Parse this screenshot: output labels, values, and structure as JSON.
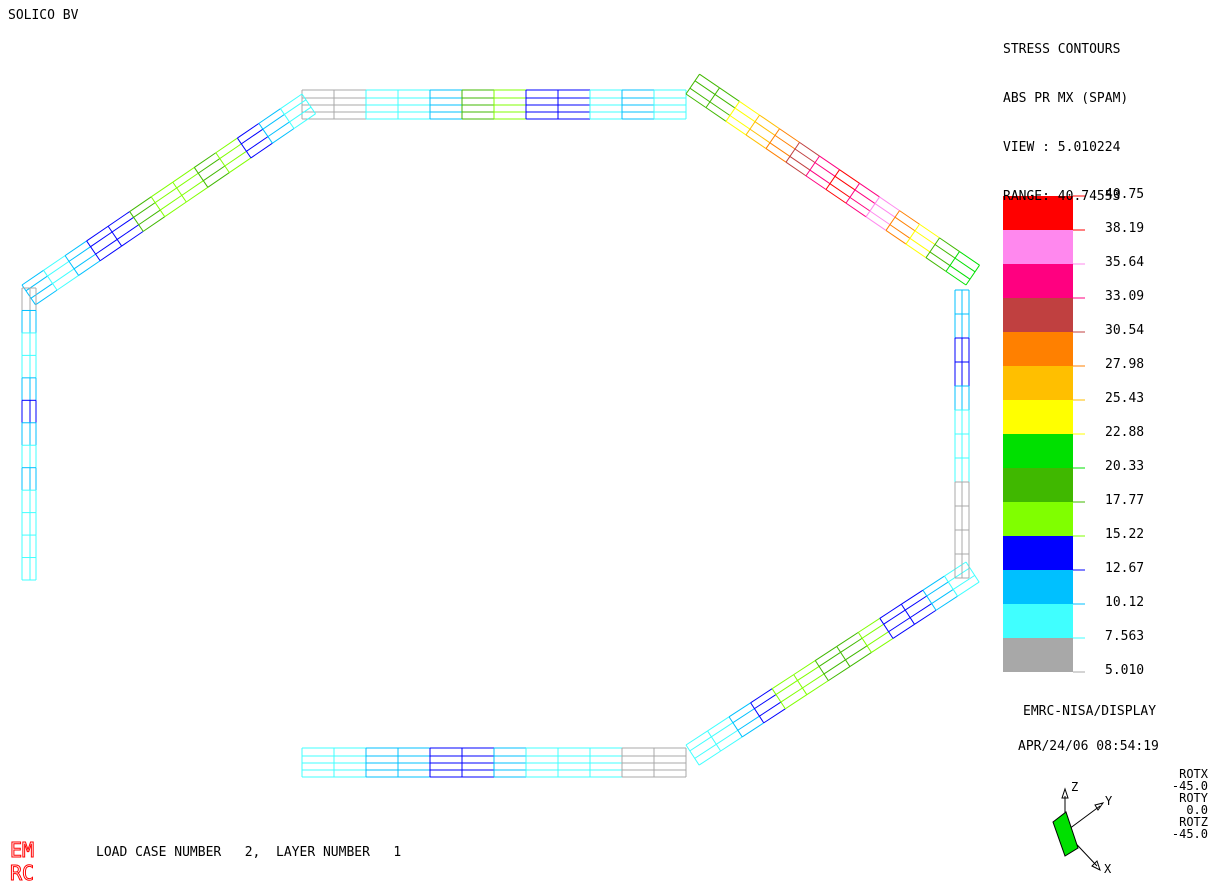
{
  "company": "SOLICO BV",
  "header": {
    "lines": [
      "STRESS CONTOURS",
      "ABS PR MX (SPAM)",
      "VIEW : 5.010224",
      "RANGE: 40.74553"
    ]
  },
  "legend": {
    "labels": [
      "40.75",
      "38.19",
      "35.64",
      "33.09",
      "30.54",
      "27.98",
      "25.43",
      "22.88",
      "20.33",
      "17.77",
      "15.22",
      "12.67",
      "10.12",
      "7.563",
      "5.010"
    ],
    "colors": [
      "#ff0000",
      "#ff88ee",
      "#ff0080",
      "#c04040",
      "#ff8000",
      "#ffbf00",
      "#ffff00",
      "#00e000",
      "#40b800",
      "#80ff00",
      "#0000ff",
      "#00c0ff",
      "#40ffff",
      "#a8a8a8"
    ]
  },
  "brand": "EMRC-NISA/DISPLAY",
  "timestamp": "APR/24/06 08:54:19",
  "rotation": [
    "ROTX",
    "-45.0",
    "ROTY",
    "0.0",
    "ROTZ",
    "-45.0"
  ],
  "axes": {
    "z": "Z",
    "y": "Y",
    "x": "X"
  },
  "logo": {
    "line1": "EM",
    "line2": "RC"
  },
  "load_case": "LOAD CASE NUMBER   2,  LAYER NUMBER   1",
  "colors": {
    "gray": "#a8a8a8",
    "cyan": "#40ffff",
    "lightblue": "#00c0ff",
    "blue": "#0000ff",
    "lime": "#80ff00",
    "green": "#40b800",
    "brightgreen": "#00e000",
    "yellow": "#ffff00",
    "amber": "#ffbf00",
    "orange": "#ff8000",
    "brown": "#c04040",
    "magenta": "#ff0080",
    "pink": "#ff88ee",
    "red": "#ff0000",
    "logo": "#ff0000"
  },
  "segments": {
    "top_beam": [
      "gray",
      "gray",
      "cyan",
      "cyan",
      "lightblue",
      "green",
      "lime",
      "blue",
      "blue",
      "cyan",
      "lightblue",
      "cyan"
    ],
    "top_left_diag": [
      "lightblue",
      "cyan",
      "lightblue",
      "blue",
      "blue",
      "green",
      "lime",
      "lime",
      "green",
      "lime",
      "blue",
      "lightblue",
      "cyan"
    ],
    "top_right_diag": [
      "green",
      "green",
      "yellow",
      "amber",
      "orange",
      "brown",
      "magenta",
      "red",
      "magenta",
      "pink",
      "orange",
      "yellow",
      "green",
      "brightgreen"
    ],
    "left_column": [
      "gray",
      "lightblue",
      "cyan",
      "cyan",
      "lightblue",
      "blue",
      "lightblue",
      "cyan",
      "lightblue",
      "cyan",
      "cyan",
      "cyan",
      "cyan"
    ],
    "right_column": [
      "lightblue",
      "lightblue",
      "blue",
      "blue",
      "lightblue",
      "cyan",
      "cyan",
      "cyan",
      "gray",
      "gray",
      "gray",
      "gray"
    ],
    "bottom_right_diag": [
      "cyan",
      "cyan",
      "lightblue",
      "blue",
      "lime",
      "lime",
      "green",
      "green",
      "lime",
      "blue",
      "blue",
      "lightblue",
      "cyan"
    ],
    "bottom_beam": [
      "cyan",
      "cyan",
      "lightblue",
      "lightblue",
      "blue",
      "blue",
      "lightblue",
      "cyan",
      "cyan",
      "cyan",
      "gray",
      "gray"
    ]
  }
}
